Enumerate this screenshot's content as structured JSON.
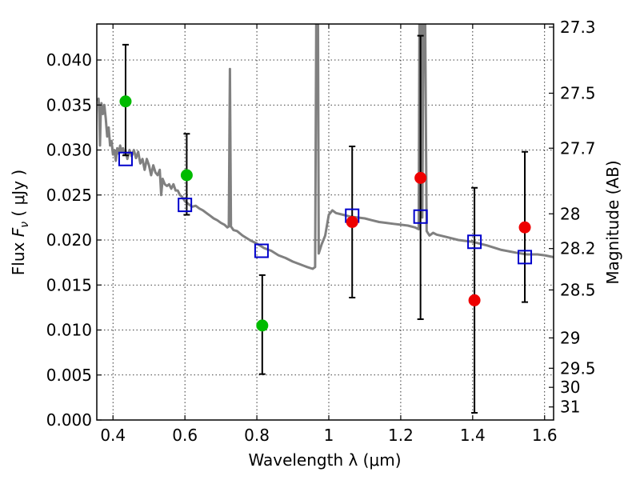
{
  "chart_data": {
    "type": "scatter",
    "xlabel": "Wavelength  λ (μm)",
    "ylabel": "Flux  F_ν  ( μJy )",
    "ylabel_parts": {
      "pre": "Flux  ",
      "F": "F",
      "nu": "ν",
      "post": "  ( μJy )"
    },
    "y2label": "Magnitude (AB)",
    "xlim": [
      0.355,
      1.625
    ],
    "ylim": [
      0.0,
      0.044
    ],
    "grid": true,
    "x_ticks": [
      0.4,
      0.6,
      0.8,
      1.0,
      1.2,
      1.4,
      1.6
    ],
    "x_tick_labels": [
      "0.4",
      "0.6",
      "0.8",
      "1",
      "1.2",
      "1.4",
      "1.6"
    ],
    "y_ticks": [
      0.0,
      0.005,
      0.01,
      0.015,
      0.02,
      0.025,
      0.03,
      0.035,
      0.04
    ],
    "y_tick_labels": [
      "0.000",
      "0.005",
      "0.010",
      "0.015",
      "0.020",
      "0.025",
      "0.030",
      "0.035",
      "0.040"
    ],
    "magnitude_ticks": [
      {
        "label": "27.3",
        "flux": 0.04365
      },
      {
        "label": "27.5",
        "flux": 0.03631
      },
      {
        "label": "27.7",
        "flux": 0.0302
      },
      {
        "label": "28",
        "flux": 0.02291
      },
      {
        "label": "28.2",
        "flux": 0.01905
      },
      {
        "label": "28.5",
        "flux": 0.01445
      },
      {
        "label": "29",
        "flux": 0.00912
      },
      {
        "label": "29.5",
        "flux": 0.00575
      },
      {
        "label": "30",
        "flux": 0.00363
      },
      {
        "label": "31",
        "flux": 0.00145
      }
    ],
    "template_spectrum": {
      "color": "#808080",
      "points": [
        [
          0.355,
          0.0355
        ],
        [
          0.36,
          0.0357
        ],
        [
          0.362,
          0.034
        ],
        [
          0.364,
          0.0305
        ],
        [
          0.366,
          0.034
        ],
        [
          0.368,
          0.0352
        ],
        [
          0.372,
          0.034
        ],
        [
          0.376,
          0.035
        ],
        [
          0.38,
          0.0335
        ],
        [
          0.384,
          0.0315
        ],
        [
          0.388,
          0.0325
        ],
        [
          0.392,
          0.0305
        ],
        [
          0.396,
          0.031
        ],
        [
          0.4,
          0.0295
        ],
        [
          0.404,
          0.03
        ],
        [
          0.408,
          0.0288
        ],
        [
          0.412,
          0.0302
        ],
        [
          0.416,
          0.0296
        ],
        [
          0.42,
          0.0305
        ],
        [
          0.424,
          0.0298
        ],
        [
          0.428,
          0.0302
        ],
        [
          0.432,
          0.0295
        ],
        [
          0.436,
          0.0298
        ],
        [
          0.44,
          0.029
        ],
        [
          0.446,
          0.03
        ],
        [
          0.452,
          0.0293
        ],
        [
          0.458,
          0.03
        ],
        [
          0.464,
          0.0291
        ],
        [
          0.47,
          0.0298
        ],
        [
          0.476,
          0.0285
        ],
        [
          0.482,
          0.029
        ],
        [
          0.488,
          0.0278
        ],
        [
          0.494,
          0.029
        ],
        [
          0.5,
          0.0283
        ],
        [
          0.506,
          0.0272
        ],
        [
          0.512,
          0.0283
        ],
        [
          0.518,
          0.0275
        ],
        [
          0.524,
          0.0272
        ],
        [
          0.53,
          0.0278
        ],
        [
          0.534,
          0.025
        ],
        [
          0.538,
          0.0268
        ],
        [
          0.544,
          0.0262
        ],
        [
          0.55,
          0.026
        ],
        [
          0.556,
          0.0262
        ],
        [
          0.562,
          0.0257
        ],
        [
          0.568,
          0.0262
        ],
        [
          0.574,
          0.0255
        ],
        [
          0.58,
          0.0255
        ],
        [
          0.586,
          0.025
        ],
        [
          0.592,
          0.0248
        ],
        [
          0.6,
          0.0243
        ],
        [
          0.61,
          0.024
        ],
        [
          0.62,
          0.0237
        ],
        [
          0.63,
          0.0238
        ],
        [
          0.64,
          0.0235
        ],
        [
          0.65,
          0.0233
        ],
        [
          0.66,
          0.023
        ],
        [
          0.67,
          0.0227
        ],
        [
          0.68,
          0.0224
        ],
        [
          0.69,
          0.0222
        ],
        [
          0.7,
          0.0219
        ],
        [
          0.71,
          0.0217
        ],
        [
          0.718,
          0.0214
        ],
        [
          0.722,
          0.0215
        ],
        [
          0.725,
          0.039
        ],
        [
          0.728,
          0.0215
        ],
        [
          0.735,
          0.0211
        ],
        [
          0.745,
          0.021
        ],
        [
          0.76,
          0.0205
        ],
        [
          0.78,
          0.02
        ],
        [
          0.8,
          0.0196
        ],
        [
          0.82,
          0.0191
        ],
        [
          0.84,
          0.0188
        ],
        [
          0.86,
          0.0183
        ],
        [
          0.88,
          0.018
        ],
        [
          0.9,
          0.0176
        ],
        [
          0.92,
          0.0173
        ],
        [
          0.94,
          0.017
        ],
        [
          0.955,
          0.0168
        ],
        [
          0.962,
          0.017
        ],
        [
          0.965,
          0.044
        ],
        [
          0.97,
          0.044
        ],
        [
          0.972,
          0.0185
        ],
        [
          0.98,
          0.0195
        ],
        [
          0.99,
          0.0205
        ],
        [
          1.0,
          0.0228
        ],
        [
          1.01,
          0.0233
        ],
        [
          1.02,
          0.023
        ],
        [
          1.04,
          0.0228
        ],
        [
          1.06,
          0.0226
        ],
        [
          1.08,
          0.0225
        ],
        [
          1.1,
          0.0224
        ],
        [
          1.12,
          0.0222
        ],
        [
          1.14,
          0.022
        ],
        [
          1.16,
          0.0219
        ],
        [
          1.18,
          0.0218
        ],
        [
          1.2,
          0.0217
        ],
        [
          1.22,
          0.0216
        ],
        [
          1.24,
          0.0214
        ],
        [
          1.25,
          0.0212
        ],
        [
          1.252,
          0.044
        ],
        [
          1.258,
          0.044
        ],
        [
          1.26,
          0.0225
        ],
        [
          1.263,
          0.044
        ],
        [
          1.268,
          0.044
        ],
        [
          1.272,
          0.021
        ],
        [
          1.28,
          0.0205
        ],
        [
          1.29,
          0.0208
        ],
        [
          1.3,
          0.0206
        ],
        [
          1.33,
          0.0203
        ],
        [
          1.36,
          0.02
        ],
        [
          1.4,
          0.0198
        ],
        [
          1.44,
          0.0194
        ],
        [
          1.48,
          0.0189
        ],
        [
          1.52,
          0.0186
        ],
        [
          1.55,
          0.0184
        ],
        [
          1.58,
          0.0184
        ],
        [
          1.6,
          0.0183
        ],
        [
          1.625,
          0.0181
        ]
      ]
    },
    "model_points": {
      "marker": "open-square",
      "color": "#0000cc",
      "points": [
        [
          0.435,
          0.029
        ],
        [
          0.6,
          0.0239
        ],
        [
          0.813,
          0.0188
        ],
        [
          1.065,
          0.0227
        ],
        [
          1.255,
          0.0226
        ],
        [
          1.405,
          0.0198
        ],
        [
          1.545,
          0.0181
        ]
      ]
    },
    "observed_points": [
      {
        "x": 0.435,
        "y": 0.0354,
        "yerr_lo": 0.0294,
        "yerr_hi": 0.0417,
        "color": "#00bb00"
      },
      {
        "x": 0.605,
        "y": 0.0272,
        "yerr_lo": 0.0228,
        "yerr_hi": 0.0318,
        "color": "#00bb00"
      },
      {
        "x": 0.815,
        "y": 0.0105,
        "yerr_lo": 0.0051,
        "yerr_hi": 0.0161,
        "color": "#00bb00"
      },
      {
        "x": 1.065,
        "y": 0.022,
        "yerr_lo": 0.0136,
        "yerr_hi": 0.0304,
        "color": "#ee0000"
      },
      {
        "x": 1.255,
        "y": 0.0269,
        "yerr_lo": 0.0112,
        "yerr_hi": 0.0427,
        "color": "#ee0000"
      },
      {
        "x": 1.405,
        "y": 0.0133,
        "yerr_lo": 0.0008,
        "yerr_hi": 0.0258,
        "color": "#ee0000"
      },
      {
        "x": 1.545,
        "y": 0.0214,
        "yerr_lo": 0.0131,
        "yerr_hi": 0.0298,
        "color": "#ee0000"
      }
    ]
  }
}
